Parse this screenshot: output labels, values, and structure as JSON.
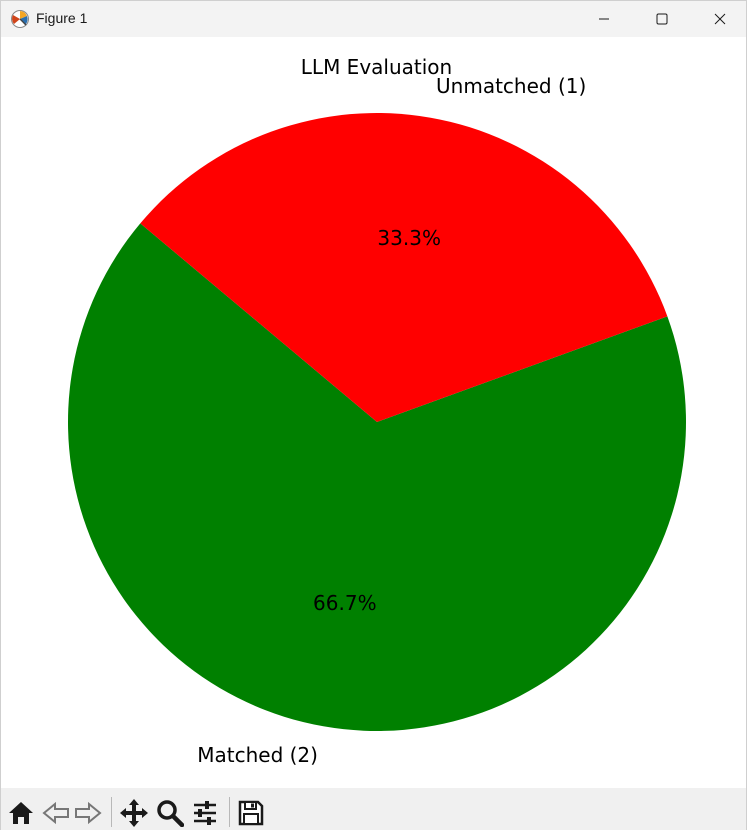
{
  "window": {
    "title": "Figure 1",
    "icons": {
      "app": "matplotlib-icon",
      "minimize": "minimize-icon",
      "maximize": "maximize-icon",
      "close": "close-icon"
    }
  },
  "toolbar": {
    "tools": [
      {
        "icon": "home-icon"
      },
      {
        "icon": "back-arrow-icon"
      },
      {
        "icon": "forward-arrow-icon"
      },
      {
        "icon": "pan-icon"
      },
      {
        "icon": "zoom-icon"
      },
      {
        "icon": "configure-subplots-icon"
      },
      {
        "icon": "save-icon"
      }
    ]
  },
  "chart_data": {
    "type": "pie",
    "title": "LLM Evaluation",
    "start_angle_deg": 140,
    "slices": [
      {
        "label": "Matched (2)",
        "value": 2,
        "pct_label": "66.7%",
        "color": "#008000"
      },
      {
        "label": "Unmatched (1)",
        "value": 1,
        "pct_label": "33.3%",
        "color": "#ff0000"
      }
    ]
  }
}
